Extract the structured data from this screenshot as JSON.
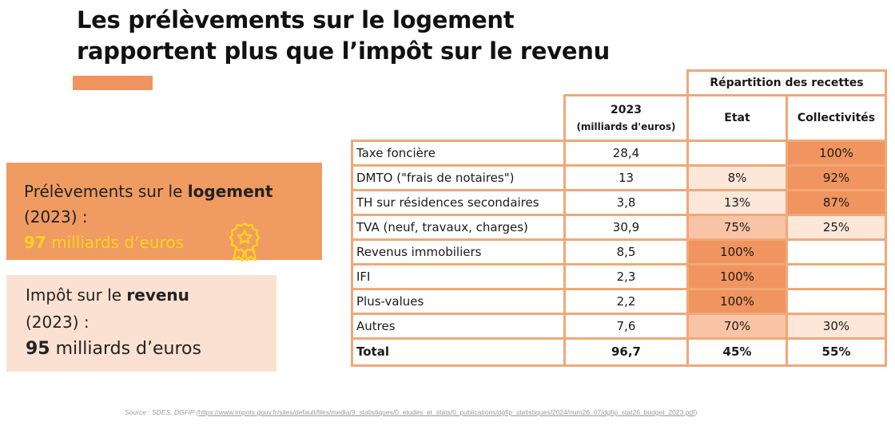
{
  "title": {
    "line1": "Les prélèvements sur le logement",
    "line2": "rapportent plus que l’impôt sur le revenu"
  },
  "colors": {
    "accent": "#f0955f",
    "dark_cell": "#f0955f",
    "mid_cell": "#f9c4a5",
    "light_cell": "#fde7d9",
    "amount_yellow": "#ffd21f"
  },
  "logement_box": {
    "prefix": "Prélèvements sur le ",
    "bold": "logement",
    "year": "(2023) :",
    "amount_bold": "97",
    "amount_rest": " milliards d’euros",
    "icon": "medal-icon"
  },
  "revenu_box": {
    "prefix": "Impôt sur le ",
    "bold": "revenu",
    "year": "(2023) :",
    "amount_bold": "95",
    "amount_rest": " milliards d’euros"
  },
  "table": {
    "group_header": "Répartition des recettes",
    "col_year": "2023",
    "col_year_unit": "(milliards d'euros)",
    "col_etat": "Etat",
    "col_collectivites": "Collectivités",
    "rows": [
      {
        "label": "Taxe foncière",
        "value": "28,4",
        "etat": "",
        "collectivites": "100%"
      },
      {
        "label": "DMTO (\"frais de notaires\")",
        "value": "13",
        "etat": "8%",
        "collectivites": "92%"
      },
      {
        "label": "TH sur résidences secondaires",
        "value": "3,8",
        "etat": "13%",
        "collectivites": "87%"
      },
      {
        "label": "TVA (neuf, travaux, charges)",
        "value": "30,9",
        "etat": "75%",
        "collectivites": "25%"
      },
      {
        "label": "Revenus immobiliers",
        "value": "8,5",
        "etat": "100%",
        "collectivites": ""
      },
      {
        "label": "IFI",
        "value": "2,3",
        "etat": "100%",
        "collectivites": ""
      },
      {
        "label": "Plus-values",
        "value": "2,2",
        "etat": "100%",
        "collectivites": ""
      },
      {
        "label": "Autres",
        "value": "7,6",
        "etat": "70%",
        "collectivites": "30%"
      }
    ],
    "total": {
      "label": "Total",
      "value": "96,7",
      "etat": "45%",
      "collectivites": "55%"
    }
  },
  "source": {
    "label": "Source : SDES, DGFiP (",
    "url": "https://www.impots.gouv.fr/sites/default/files/media/9_statistiques/0_etudes_et_stats/0_publications/dgfip_statistiques/2024/num26_07/dgfip_stat26_budget_2023.pdf",
    "close": ")"
  }
}
